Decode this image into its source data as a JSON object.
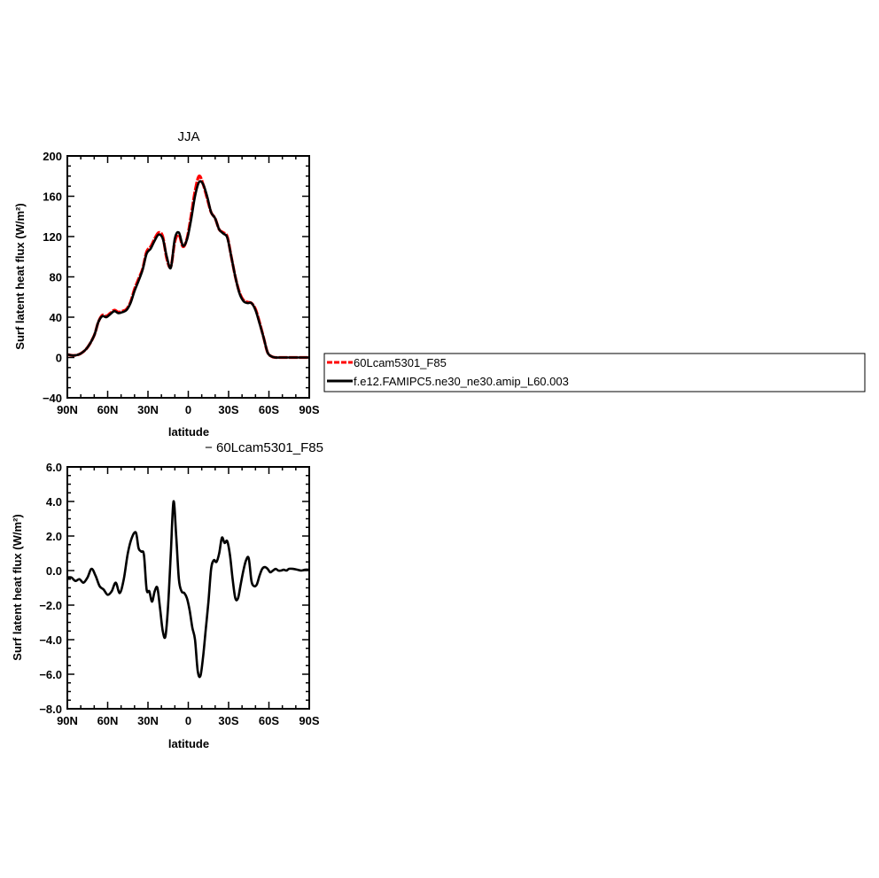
{
  "chart_data": [
    {
      "type": "line",
      "title": "JJA",
      "xlabel": "latitude",
      "ylabel": "Surf latent heat flux (W/m²)",
      "xlim": [
        90,
        -90
      ],
      "ylim": [
        -40,
        200
      ],
      "yticks": [
        -40,
        0,
        40,
        80,
        120,
        160,
        200
      ],
      "xticks": [
        90,
        60,
        30,
        0,
        -30,
        -60,
        -90
      ],
      "xtick_labels": [
        "90N",
        "60N",
        "30N",
        "0",
        "30S",
        "60S",
        "90S"
      ],
      "ytick_labels": [
        "−40",
        "0",
        "40",
        "80",
        "120",
        "160",
        "200"
      ],
      "legend": "right",
      "series": [
        {
          "name": "60Lcam5301_F85",
          "color": "#ff0000",
          "dash": true,
          "x": [
            90,
            85,
            80,
            75,
            70,
            67,
            64,
            61,
            58,
            55,
            52,
            49,
            46,
            43,
            40,
            37,
            34,
            31,
            28,
            25,
            22,
            19,
            16,
            13,
            10,
            7,
            4,
            1,
            -2,
            -5,
            -8,
            -11,
            -14,
            -17,
            -20,
            -23,
            -26,
            -29,
            -32,
            -35,
            -38,
            -41,
            -44,
            -47,
            -50,
            -53,
            -56,
            -59,
            -62,
            -65,
            -68,
            -71,
            -74,
            -77,
            -80,
            -85,
            -90
          ],
          "y": [
            3,
            2,
            4,
            10,
            22,
            35,
            42,
            41,
            44,
            47,
            45,
            46,
            48,
            55,
            68,
            78,
            88,
            105,
            110,
            118,
            124,
            120,
            98,
            90,
            115,
            122,
            110,
            118,
            140,
            165,
            180,
            172,
            158,
            144,
            138,
            127,
            124,
            120,
            100,
            80,
            65,
            57,
            55,
            54,
            48,
            35,
            20,
            5,
            1,
            0,
            0,
            0,
            0,
            0,
            0,
            0,
            0
          ]
        },
        {
          "name": "f.e12.FAMIPC5.ne30_ne30.amip_L60.003",
          "color": "#000000",
          "dash": false,
          "x": [
            90,
            85,
            80,
            75,
            70,
            67,
            64,
            61,
            58,
            55,
            52,
            49,
            46,
            43,
            40,
            37,
            34,
            31,
            28,
            25,
            22,
            19,
            16,
            13,
            10,
            7,
            4,
            1,
            -2,
            -5,
            -8,
            -11,
            -14,
            -17,
            -20,
            -23,
            -26,
            -29,
            -32,
            -35,
            -38,
            -41,
            -44,
            -47,
            -50,
            -53,
            -56,
            -59,
            -62,
            -65,
            -68,
            -71,
            -74,
            -77,
            -80,
            -85,
            -90
          ],
          "y": [
            3,
            2,
            4,
            10,
            22,
            35,
            41,
            40,
            43,
            46,
            44,
            45,
            47,
            54,
            66,
            76,
            87,
            103,
            108,
            116,
            122,
            118,
            100,
            89,
            118,
            124,
            111,
            117,
            136,
            160,
            174,
            172,
            160,
            144,
            138,
            127,
            123,
            119,
            100,
            80,
            64,
            56,
            54,
            54,
            47,
            34,
            20,
            5,
            1,
            0,
            0,
            0,
            0,
            0,
            0,
            0,
            0
          ]
        }
      ]
    },
    {
      "type": "line",
      "title": "− 60Lcam5301_F85",
      "xlabel": "latitude",
      "ylabel": "Surf latent heat flux (W/m²)",
      "xlim": [
        90,
        -90
      ],
      "ylim": [
        -8,
        6
      ],
      "yticks": [
        -8,
        -6,
        -4,
        -2,
        0,
        2,
        4,
        6
      ],
      "xticks": [
        90,
        60,
        30,
        0,
        -30,
        -60,
        -90
      ],
      "xtick_labels": [
        "90N",
        "60N",
        "30N",
        "0",
        "30S",
        "60S",
        "90S"
      ],
      "ytick_labels": [
        "−8.0",
        "−6.0",
        "−4.0",
        "−2.0",
        "0.0",
        "2.0",
        "4.0",
        "6.0"
      ],
      "series": [
        {
          "color": "#000000",
          "x": [
            90,
            87,
            84,
            81,
            78,
            75,
            72,
            69,
            66,
            63,
            60,
            57,
            54,
            51,
            48,
            45,
            42,
            39,
            37,
            35,
            33,
            31,
            29,
            27,
            25,
            23,
            21,
            19,
            17,
            15,
            13,
            11,
            9,
            7,
            5,
            3,
            1,
            -1,
            -3,
            -5,
            -7,
            -9,
            -11,
            -13,
            -15,
            -17,
            -19,
            -21,
            -23,
            -25,
            -27,
            -29,
            -31,
            -33,
            -35,
            -37,
            -39,
            -41,
            -43,
            -45,
            -47,
            -49,
            -51,
            -53,
            -55,
            -57,
            -59,
            -61,
            -63,
            -65,
            -67,
            -69,
            -71,
            -73,
            -75,
            -78,
            -81,
            -84,
            -87,
            -90
          ],
          "y": [
            -0.4,
            -0.4,
            -0.6,
            -0.5,
            -0.7,
            -0.4,
            0.1,
            -0.3,
            -0.9,
            -1.1,
            -1.4,
            -1.2,
            -0.7,
            -1.3,
            -0.5,
            1.0,
            1.9,
            2.2,
            1.3,
            1.1,
            0.9,
            -1.1,
            -1.2,
            -1.8,
            -1.2,
            -1.0,
            -2.2,
            -3.5,
            -3.8,
            -2.0,
            1.0,
            4.0,
            2.0,
            -0.5,
            -1.2,
            -1.3,
            -1.6,
            -2.3,
            -3.3,
            -4.0,
            -5.8,
            -6.1,
            -5.0,
            -3.4,
            -1.8,
            0.1,
            0.6,
            0.5,
            1.0,
            1.9,
            1.6,
            1.7,
            0.9,
            -0.5,
            -1.6,
            -1.6,
            -0.8,
            0.0,
            0.6,
            0.7,
            -0.6,
            -0.9,
            -0.8,
            -0.3,
            0.1,
            0.2,
            0.1,
            -0.1,
            0.0,
            0.1,
            0.0,
            0.0,
            0.05,
            0.0,
            0.1,
            0.1,
            0.05,
            0.0,
            0.05,
            0.05
          ]
        }
      ]
    }
  ]
}
